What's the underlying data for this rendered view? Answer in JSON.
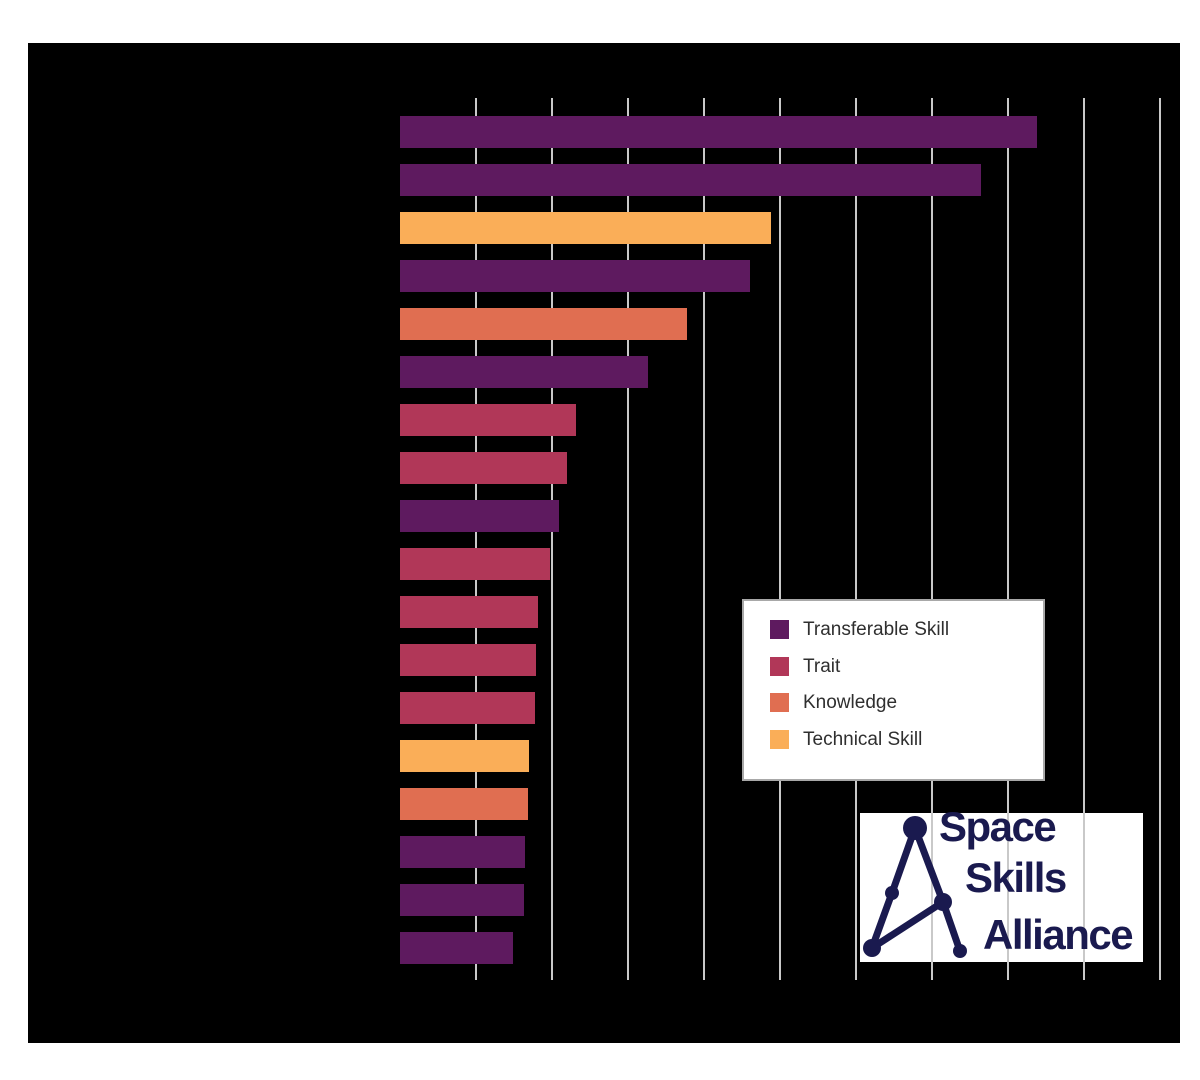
{
  "canvas": {
    "background_color": "#ffffff",
    "figure_background_color": "#000000"
  },
  "chart_data": {
    "type": "bar",
    "orientation": "horizontal",
    "categories": [
      "",
      "",
      "",
      "",
      "",
      "",
      "",
      "",
      "",
      "",
      "",
      "",
      "",
      "",
      "",
      "",
      "",
      ""
    ],
    "category_labels_visible": false,
    "tick_labels_visible": false,
    "values": [
      83.9,
      76.5,
      48.8,
      46.1,
      37.8,
      32.6,
      23.2,
      22.0,
      20.9,
      19.7,
      18.2,
      17.9,
      17.8,
      17.0,
      16.9,
      16.5,
      16.3,
      14.9
    ],
    "bar_series": [
      "Transferable Skill",
      "Transferable Skill",
      "Technical Skill",
      "Transferable Skill",
      "Knowledge",
      "Transferable Skill",
      "Trait",
      "Trait",
      "Transferable Skill",
      "Trait",
      "Trait",
      "Trait",
      "Trait",
      "Technical Skill",
      "Knowledge",
      "Transferable Skill",
      "Transferable Skill",
      "Transferable Skill"
    ],
    "xlim": [
      0,
      102
    ],
    "gridline_ticks": [
      10,
      20,
      30,
      40,
      50,
      60,
      70,
      80,
      90,
      100
    ],
    "grid": "vertical-only",
    "gridline_color": "#c9c9c9",
    "legend_position": "inside-right"
  },
  "legend": {
    "background_color": "#ffffff",
    "border_color": "#a8a8a8",
    "text_color": "#2f2f2f",
    "items": [
      {
        "label": "Transferable Skill",
        "color": "#5e1a5f"
      },
      {
        "label": "Trait",
        "color": "#b13758"
      },
      {
        "label": "Knowledge",
        "color": "#e06e51"
      },
      {
        "label": "Technical Skill",
        "color": "#faae58"
      }
    ]
  },
  "logo": {
    "lines": [
      "Space",
      "Skills",
      "Alliance"
    ],
    "color": "#1a1a4f",
    "background_color": "#ffffff"
  }
}
